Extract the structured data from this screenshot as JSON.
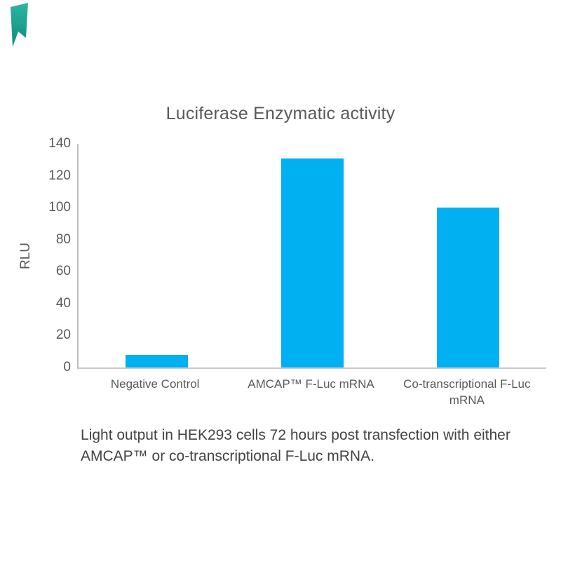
{
  "brand_mark": {
    "color_top": "#2CB5A0",
    "color_bottom": "#0E8C80"
  },
  "chart_data": {
    "type": "bar",
    "title": "Luciferase Enzymatic activity",
    "categories": [
      "Negative Control",
      "AMCAP™ F-Luc mRNA",
      "Co-transcriptional F-Luc mRNA"
    ],
    "values": [
      8,
      131,
      100
    ],
    "xlabel": "",
    "ylabel": "RLU",
    "ylim": [
      0,
      140
    ],
    "ytick_step": 20,
    "ytick_labels": [
      "140",
      "120",
      "100",
      "80",
      "60",
      "40",
      "20",
      "0"
    ],
    "grid": false,
    "legend": false,
    "bar_color": "#00B0F0",
    "axis_line_color": "#BFBFBF",
    "text_color": "#595959"
  },
  "caption": {
    "line1": "Light output in HEK293 cells 72 hours post transfection with either",
    "line2": "AMCAP™ or co-transcriptional F-Luc mRNA."
  }
}
